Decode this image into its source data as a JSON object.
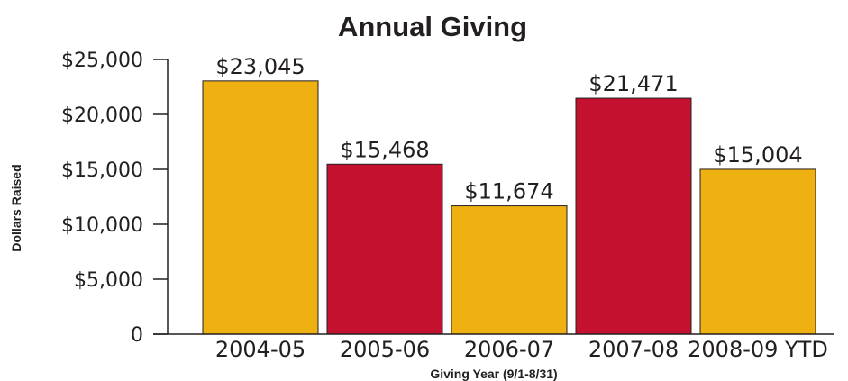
{
  "chart_data": {
    "type": "bar",
    "title": "Annual Giving",
    "xlabel": "Giving Year (9/1-8/31)",
    "ylabel": "Dollars Raised",
    "categories": [
      "2004-05",
      "2005-06",
      "2006-07",
      "2007-08",
      "2008-09 YTD"
    ],
    "values": [
      23045,
      15468,
      11674,
      21471,
      15004
    ],
    "data_labels": [
      "$23,045",
      "$15,468",
      "$11,674",
      "$21,471",
      "$15,004"
    ],
    "bar_colors": [
      "#eeb111",
      "#c4112f",
      "#eeb111",
      "#c4112f",
      "#eeb111"
    ],
    "ylim": [
      0,
      25000
    ],
    "yticks": [
      0,
      5000,
      10000,
      15000,
      20000,
      25000
    ],
    "ytick_labels": [
      "0",
      "$5,000",
      "$10,000",
      "$15,000",
      "$20,000",
      "$25,000"
    ],
    "grid": false,
    "legend": "none"
  }
}
